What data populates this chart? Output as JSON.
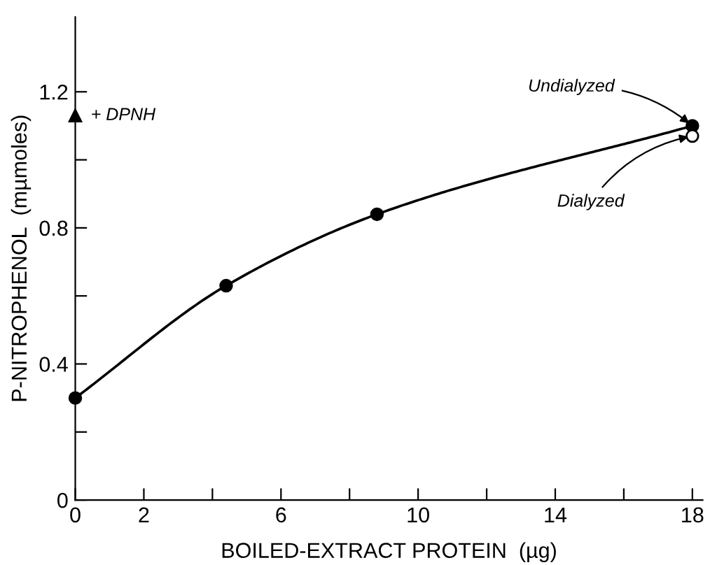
{
  "chart_data": {
    "type": "line",
    "xlabel": "BOILED-EXTRACT PROTEIN  (µg)",
    "ylabel": "P-NITROPHENOL  (mµmoles)",
    "xlim": [
      0,
      18.3
    ],
    "ylim": [
      0,
      1.42
    ],
    "xticks": [
      0,
      2,
      {
        "value": 4,
        "label": null
      },
      6,
      {
        "value": 8,
        "label": null
      },
      10,
      {
        "value": 12,
        "label": null
      },
      14,
      {
        "value": 16,
        "label": null
      },
      18
    ],
    "yticks": [
      0,
      {
        "value": 0.2,
        "label": null
      },
      0.4,
      {
        "value": 0.6,
        "label": null
      },
      0.8,
      {
        "value": 1.0,
        "label": null
      },
      1.2
    ],
    "grid": false,
    "legend": false,
    "series": [
      {
        "color": "#000000",
        "marker": "circle",
        "line_style": "solid",
        "x": [
          0,
          4.4,
          8.8,
          18
        ],
        "values": [
          0.3,
          0.63,
          0.84,
          1.1
        ]
      },
      {
        "type": "scatter",
        "color": "#ffffff",
        "marker": "circle",
        "x": [
          18
        ],
        "values": [
          1.07
        ]
      },
      {
        "type": "scatter",
        "name": "+ DPNH",
        "color": "#000000",
        "marker": "triangle",
        "x": [
          0
        ],
        "values": [
          1.13
        ]
      }
    ],
    "annotations": [
      {
        "text": "Undialyzed",
        "x": 18,
        "y": 1.1
      },
      {
        "text": "Dialyzed",
        "x": 18,
        "y": 1.07
      }
    ]
  }
}
